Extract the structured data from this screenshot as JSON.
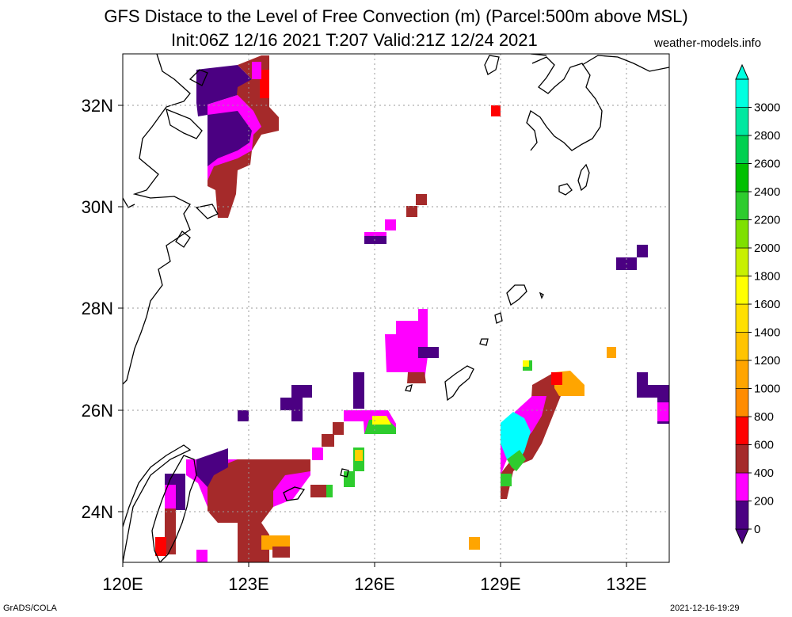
{
  "title": {
    "line1": "GFS Distace to the Level of Free Convection (m) (Parcel:500m above MSL)",
    "line2": "Init:06Z 12/16 2021 T:207 Valid:21Z 12/24 2021"
  },
  "site": "weather-models.info",
  "footer": {
    "left": "GrADS/COLA",
    "right": "2021-12-16-19:29"
  },
  "lon_ticks": [
    "120E",
    "123E",
    "126E",
    "129E",
    "132E"
  ],
  "lat_ticks": [
    "32N",
    "30N",
    "28N",
    "26N",
    "24N"
  ],
  "colorbar": {
    "labels": [
      "0",
      "200",
      "400",
      "600",
      "800",
      "1000",
      "1200",
      "1400",
      "1600",
      "1800",
      "2000",
      "2200",
      "2400",
      "2600",
      "2800",
      "3000"
    ],
    "colors": [
      "#4b0082",
      "#ff00ff",
      "#a52a2a",
      "#ff0000",
      "#ff8c00",
      "#ffa500",
      "#ffc400",
      "#ffe000",
      "#ffff00",
      "#c8f000",
      "#7fe000",
      "#2ecc2e",
      "#00c000",
      "#00d050",
      "#00e8a0",
      "#00ffe0"
    ]
  },
  "colors": {
    "purple": "#4b0082",
    "magenta": "#ff00ff",
    "brown": "#a52a2a",
    "red": "#ff0000",
    "orange": "#ffa500",
    "yellow": "#ffff00",
    "green": "#2ecc2e",
    "cyan": "#00ffff"
  }
}
